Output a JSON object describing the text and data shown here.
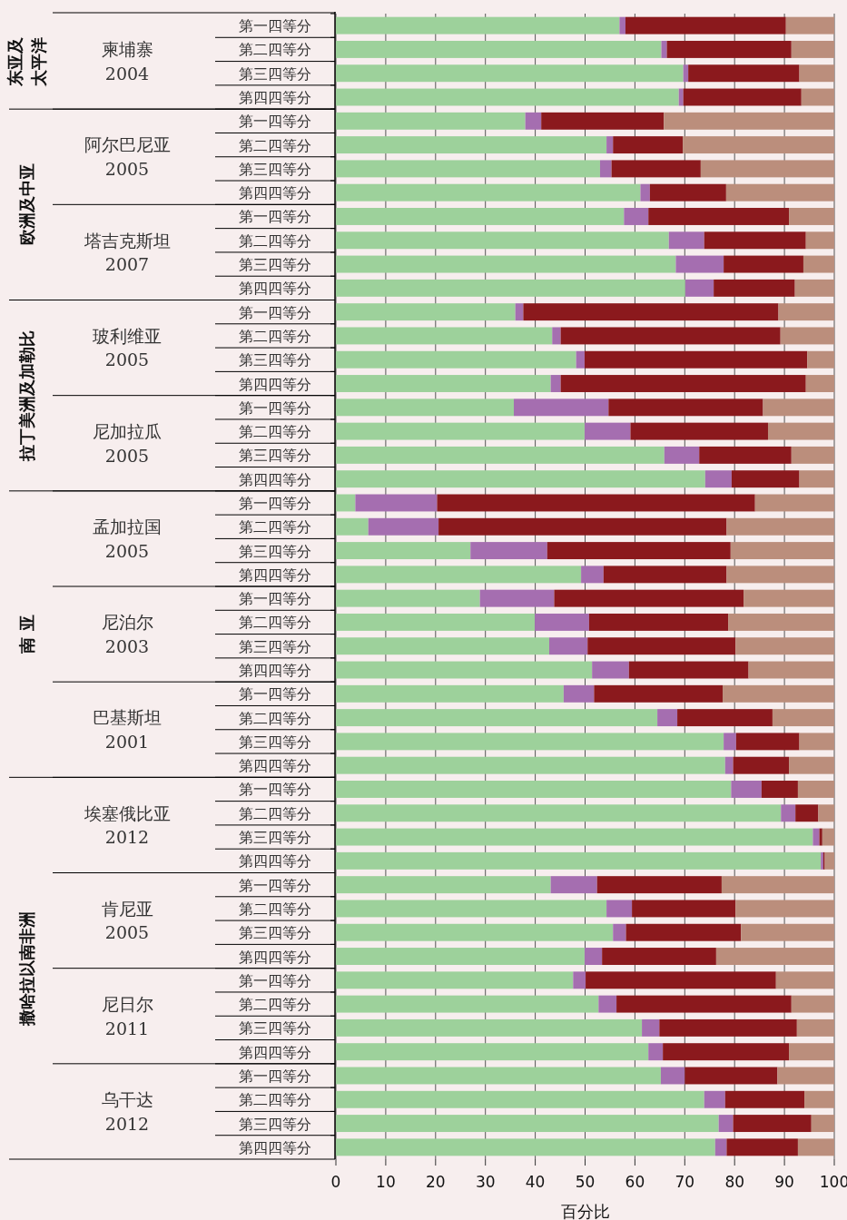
{
  "chart_data": {
    "type": "bar",
    "orientation": "horizontal",
    "stacked": true,
    "xlabel": "百分比",
    "categories": [
      "第一四等分",
      "第二四等分",
      "第三四等分",
      "第四四等分",
      "第一四等分",
      "第二四等分",
      "第三四等分",
      "第四四等分",
      "第一四等分",
      "第二四等分",
      "第三四等分",
      "第四四等分",
      "第一四等分",
      "第二四等分",
      "第三四等分",
      "第四四等分",
      "第一四等分",
      "第二四等分",
      "第三四等分",
      "第四四等分",
      "第一四等分",
      "第二四等分",
      "第三四等分",
      "第四四等分",
      "第一四等分",
      "第二四等分",
      "第三四等分",
      "第四四等分",
      "第一四等分",
      "第二四等分",
      "第三四等分",
      "第四四等分",
      "第一四等分",
      "第二四等分",
      "第三四等分",
      "第四四等分",
      "第一四等分",
      "第二四等分",
      "第三四等分",
      "第四四等分",
      "第一四等分",
      "第二四等分",
      "第三四等分",
      "第四四等分",
      "第一四等分",
      "第二四等分",
      "第三四等分",
      "第四四等分"
    ],
    "series": [
      {
        "color": "#9dd19b",
        "values": [
          56.9,
          65.3,
          69.7,
          68.8,
          38.0,
          54.3,
          53.0,
          61.1,
          57.8,
          66.8,
          68.2,
          70.1,
          36.0,
          43.4,
          48.2,
          43.1,
          35.7,
          49.9,
          65.9,
          74.1,
          3.9,
          6.5,
          27.0,
          49.2,
          28.9,
          39.9,
          42.8,
          51.4,
          45.7,
          64.5,
          77.8,
          78.1,
          79.3,
          89.3,
          95.7,
          97.3,
          43.1,
          54.3,
          55.6,
          49.9,
          47.6,
          52.7,
          61.4,
          62.7,
          65.2,
          73.9,
          76.8,
          76.1
        ]
      },
      {
        "color": "#a56eb0",
        "values": [
          1.2,
          1.1,
          1.0,
          0.9,
          3.2,
          1.3,
          2.3,
          1.9,
          4.9,
          7.1,
          9.6,
          5.7,
          1.6,
          1.7,
          1.7,
          2.0,
          19.0,
          9.2,
          7.0,
          5.3,
          16.4,
          14.1,
          15.4,
          4.5,
          14.9,
          10.9,
          7.7,
          7.4,
          6.1,
          4.0,
          2.5,
          1.6,
          6.1,
          2.9,
          1.3,
          0.5,
          9.3,
          5.1,
          2.6,
          3.5,
          2.5,
          3.6,
          3.5,
          2.9,
          4.8,
          4.2,
          2.9,
          2.3
        ]
      },
      {
        "color": "#8b191d",
        "values": [
          32.2,
          25.0,
          22.3,
          23.7,
          24.6,
          14.0,
          17.9,
          15.3,
          28.2,
          20.4,
          16.0,
          16.3,
          51.2,
          44.1,
          44.7,
          49.2,
          31.0,
          27.6,
          18.5,
          13.6,
          63.8,
          57.8,
          36.8,
          24.7,
          38.0,
          27.9,
          29.7,
          24.0,
          25.8,
          19.1,
          12.7,
          11.2,
          7.3,
          4.6,
          0.6,
          0.3,
          25.0,
          20.8,
          23.1,
          22.9,
          38.2,
          35.1,
          27.6,
          25.3,
          18.6,
          15.9,
          15.7,
          14.3
        ]
      },
      {
        "color": "#bb8e7c",
        "values": [
          9.7,
          8.6,
          7.0,
          6.6,
          34.2,
          30.4,
          26.8,
          21.7,
          9.1,
          5.7,
          6.2,
          7.9,
          11.2,
          10.8,
          5.4,
          5.7,
          14.3,
          13.3,
          8.6,
          7.0,
          15.9,
          21.6,
          20.8,
          21.6,
          18.2,
          21.3,
          19.8,
          17.2,
          22.4,
          12.4,
          7.0,
          9.1,
          7.3,
          3.2,
          2.4,
          1.9,
          22.6,
          19.8,
          18.7,
          23.7,
          11.7,
          8.6,
          7.5,
          9.1,
          11.4,
          6.0,
          4.6,
          7.3
        ]
      }
    ],
    "xlim": [
      0,
      100
    ],
    "xticks": [
      0,
      10,
      20,
      30,
      40,
      50,
      60,
      70,
      80,
      90,
      100
    ],
    "grid": "x",
    "annotations": [
      "东亚及太平洋",
      "欧洲及中亚",
      "拉丁美洲及加勒比",
      "南 亚",
      "撒哈拉以南非洲",
      "柬埔寨\n2004",
      "阿尔巴尼亚\n2005",
      "塔吉克斯坦\n2007",
      "玻利维亚\n2005",
      "尼加拉瓜\n2005",
      "孟加拉国\n2005",
      "尼泊尔\n2003",
      "巴基斯坦\n2001",
      "埃塞俄比亚\n2012",
      "肯尼亚\n2005",
      "尼日尔\n2011",
      "乌干达\n2012"
    ]
  }
}
